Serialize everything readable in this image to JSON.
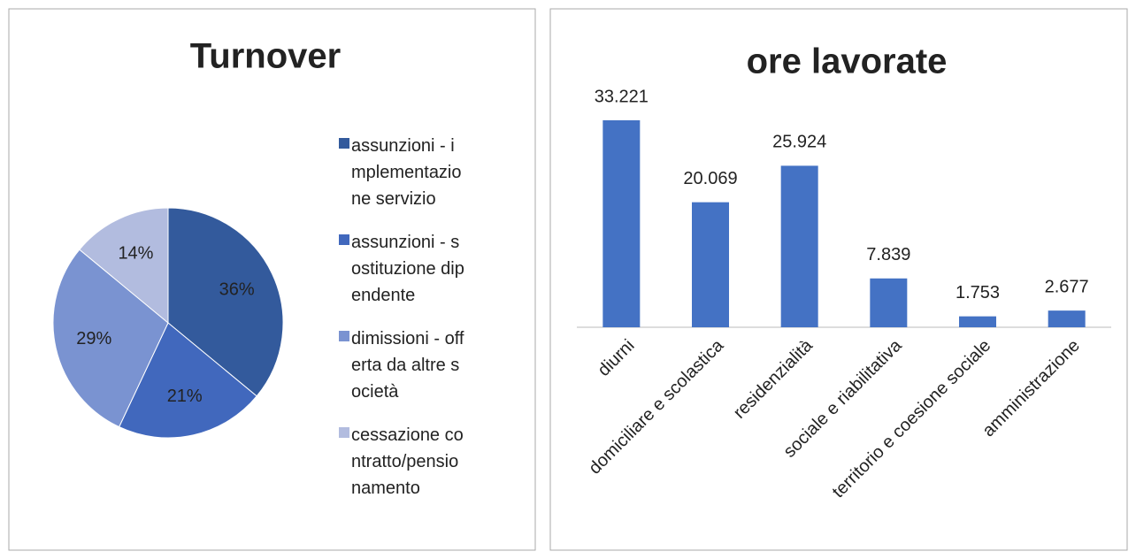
{
  "chart_data": [
    {
      "type": "pie",
      "title": "Turnover",
      "categories": [
        "assunzioni - implementazione servizio",
        "assunzioni - sostituzione dipendente",
        "dimissioni - offerta da altre società",
        "cessazione contratto/pensionamento"
      ],
      "values": [
        36,
        21,
        29,
        14
      ],
      "value_labels": [
        "36%",
        "21%",
        "29%",
        "14%"
      ],
      "colors": [
        "#335a9c",
        "#4168bd",
        "#7a93d1",
        "#b2bcdf"
      ],
      "legend": "right"
    },
    {
      "type": "bar",
      "title": "ore lavorate",
      "categories": [
        "diurni",
        "domiciliare e scolastica",
        "residenzialità",
        "sociale e riabilitativa",
        "territorio e coesione sociale",
        "amministrazione"
      ],
      "values": [
        33221,
        20069,
        25924,
        7839,
        1753,
        2677
      ],
      "value_labels": [
        "33.221",
        "20.069",
        "25.924",
        "7.839",
        "1.753",
        "2.677"
      ],
      "color": "#4472c4"
    }
  ]
}
